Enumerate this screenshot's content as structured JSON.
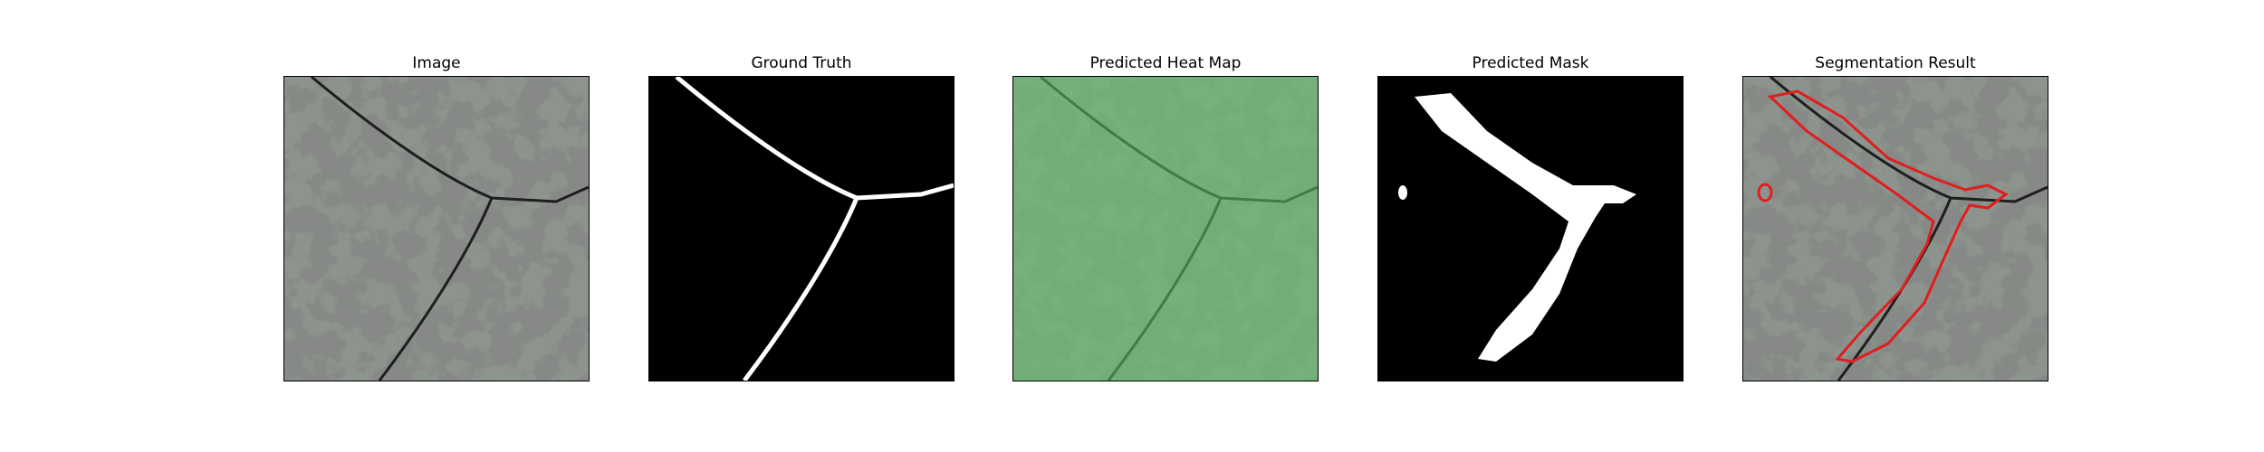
{
  "figure": {
    "panels": [
      {
        "title": "Image"
      },
      {
        "title": "Ground Truth"
      },
      {
        "title": "Predicted Heat Map"
      },
      {
        "title": "Predicted Mask"
      },
      {
        "title": "Segmentation Result"
      }
    ],
    "colors": {
      "background": "#ffffff",
      "texture_base": "#8c948d",
      "texture_dark": "#3c3d3c",
      "mask_foreground": "#ffffff",
      "mask_background": "#000000",
      "heatmap_overlay": "#63c96a",
      "contour": "#e01e1e"
    }
  }
}
